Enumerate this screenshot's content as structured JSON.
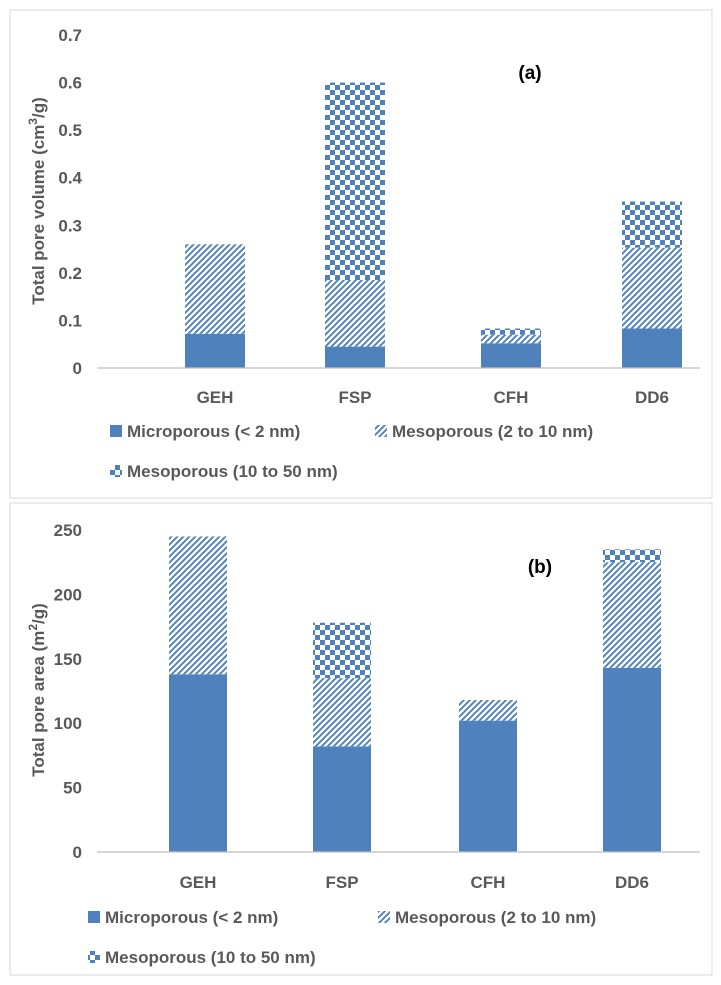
{
  "colors": {
    "series": "#4f81bd",
    "axis": "#bfbfbf",
    "text": "#595959",
    "frame": "#d9d9d9"
  },
  "chart_data": [
    {
      "type": "bar",
      "stacked": true,
      "panel_label": "(a)",
      "ylabel_main": "Total pore volume (cm",
      "ylabel_sup": "3",
      "ylabel_end": "/g)",
      "categories": [
        "GEH",
        "FSP",
        "CFH",
        "DD6"
      ],
      "yticks": [
        "0",
        "0.1",
        "0.2",
        "0.3",
        "0.4",
        "0.5",
        "0.6",
        "0.7"
      ],
      "ylim": [
        0,
        0.7
      ],
      "series": [
        {
          "name": "Microporous (< 2 nm)",
          "values": [
            0.072,
            0.045,
            0.052,
            0.083
          ],
          "pattern": "solid"
        },
        {
          "name": "Mesoporous (2 to 10 nm)",
          "values": [
            0.188,
            0.14,
            0.018,
            0.17
          ],
          "pattern": "diagonal"
        },
        {
          "name": "Mesoporous (10 to 50 nm)",
          "values": [
            0.0,
            0.415,
            0.013,
            0.097
          ],
          "pattern": "checker"
        }
      ],
      "legend_position": "bottom",
      "grid": false
    },
    {
      "type": "bar",
      "stacked": true,
      "panel_label": "(b)",
      "ylabel_main": "Total pore area (m",
      "ylabel_sup": "2",
      "ylabel_end": "/g)",
      "categories": [
        "GEH",
        "FSP",
        "CFH",
        "DD6"
      ],
      "yticks": [
        "0",
        "50",
        "100",
        "150",
        "200",
        "250"
      ],
      "ylim": [
        0,
        250
      ],
      "series": [
        {
          "name": "Microporous (< 2 nm)",
          "values": [
            138,
            82,
            102,
            143
          ],
          "pattern": "solid"
        },
        {
          "name": "Mesoporous (2 to 10 nm)",
          "values": [
            107,
            53,
            16,
            82
          ],
          "pattern": "diagonal"
        },
        {
          "name": "Mesoporous (10 to 50 nm)",
          "values": [
            0,
            43,
            0,
            10
          ],
          "pattern": "checker"
        }
      ],
      "legend_position": "bottom",
      "grid": false
    }
  ]
}
